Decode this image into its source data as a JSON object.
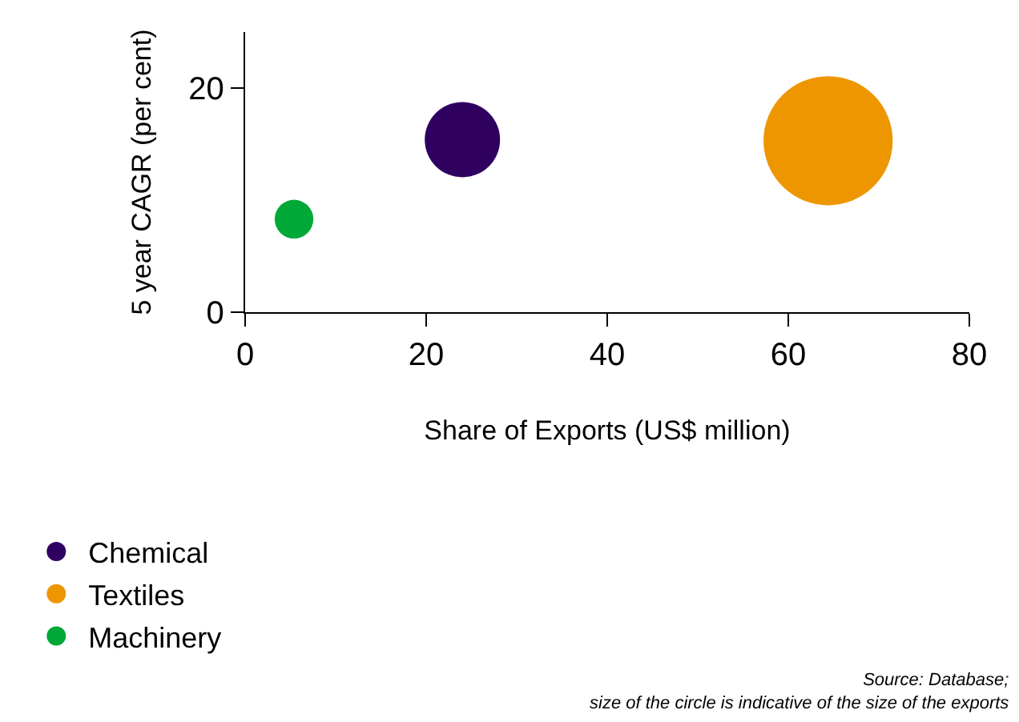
{
  "chart_data": {
    "type": "bubble",
    "xlabel": "Share of Exports (US$ million)",
    "ylabel": "5 year CAGR (per cent)",
    "xlim": [
      0,
      80
    ],
    "xticks": [
      0,
      20,
      40,
      60,
      80
    ],
    "ylim": [
      0,
      25
    ],
    "yticks": [
      0,
      20
    ],
    "legend": "bottom left",
    "series": [
      {
        "name": "Chemical",
        "color": "#300060",
        "x": [
          24
        ],
        "values": [
          15.4
        ],
        "sizes": [
          0.34
        ]
      },
      {
        "name": "Textiles",
        "color": "#ee9600",
        "x": [
          64.4
        ],
        "values": [
          15.3
        ],
        "sizes": [
          1
        ]
      },
      {
        "name": "Machinery",
        "color": "#00a838",
        "x": [
          5.4
        ],
        "values": [
          8.3
        ],
        "sizes": [
          0.09
        ]
      }
    ],
    "annotations": [
      "Source: Database; size of the circle is indicative of the size of the exports"
    ]
  }
}
